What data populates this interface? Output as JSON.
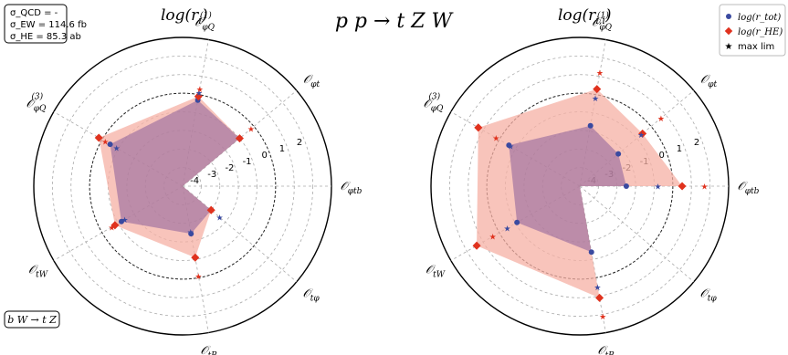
{
  "figure": {
    "title": "p p → t Z W",
    "process_label": "b W → t Z",
    "cross_sections": [
      "σ_QCD = -",
      "σ_EW = 114.6 fb",
      "σ_HE = 85.3 ab"
    ]
  },
  "legend": {
    "placement": "top-right",
    "entries": [
      {
        "label": "log(r_tot)",
        "marker": "circle",
        "color": "#3a4aa0"
      },
      {
        "label": "log(r_HE)",
        "marker": "diamond",
        "color": "#e0321e"
      },
      {
        "label": "max lim",
        "marker": "star",
        "color": "#000000"
      }
    ]
  },
  "colors": {
    "tot": "#3a4aa0",
    "he": "#e0321e",
    "tot_fill": "#8a5f9b",
    "he_fill": "#f6b0a4",
    "star_tot": "#3a4aa0",
    "star_he": "#e0321e"
  },
  "chart_data": [
    {
      "type": "radar",
      "title": "log(r_i)",
      "axes": [
        "O_φQ(1)",
        "O_φt",
        "O_φtb",
        "O_tφ",
        "O_tB",
        "O_tW",
        "O_φQ(3)"
      ],
      "radial_range": [
        -5,
        3
      ],
      "radial_ticks": [
        -4,
        -3,
        -2,
        -1,
        0,
        1,
        2
      ],
      "series": [
        {
          "name": "log(r_tot)",
          "values": [
            -0.3,
            -1.0,
            -5.0,
            -3.0,
            -2.4,
            -1.2,
            -0.5
          ]
        },
        {
          "name": "log(r_HE)",
          "values": [
            -0.1,
            -1.0,
            -5.0,
            -3.0,
            -1.1,
            -0.8,
            0.2
          ]
        }
      ],
      "max_lim": {
        "tot": [
          0.1,
          -5.0,
          -5.0,
          -2.4,
          -2.5,
          -1.4,
          -0.9
        ],
        "he": [
          0.3,
          -0.2,
          -5.0,
          -5.0,
          -0.1,
          -0.6,
          -0.2
        ]
      }
    },
    {
      "type": "radar",
      "title": "log(r_i,i)",
      "axes": [
        "O_φQ(1)",
        "O_φt",
        "O_φtb",
        "O_tφ",
        "O_tB",
        "O_tW",
        "O_φQ(3)"
      ],
      "radial_range": [
        -5,
        3
      ],
      "radial_ticks": [
        -4,
        -3,
        -2,
        -1,
        0,
        1,
        2
      ],
      "series": [
        {
          "name": "log(r_tot)",
          "values": [
            -1.7,
            -2.3,
            -2.5,
            -5.0,
            -1.4,
            -1.1,
            -0.6
          ]
        },
        {
          "name": "log(r_HE)",
          "values": [
            0.3,
            -0.6,
            0.5,
            -5.0,
            1.1,
            1.4,
            1.3
          ]
        }
      ],
      "max_lim": {
        "tot": [
          -0.2,
          -0.7,
          -0.8,
          -5.0,
          0.5,
          -0.5,
          -0.7
        ],
        "he": [
          1.2,
          0.7,
          1.7,
          -5.0,
          2.1,
          0.4,
          0.2
        ]
      }
    }
  ]
}
